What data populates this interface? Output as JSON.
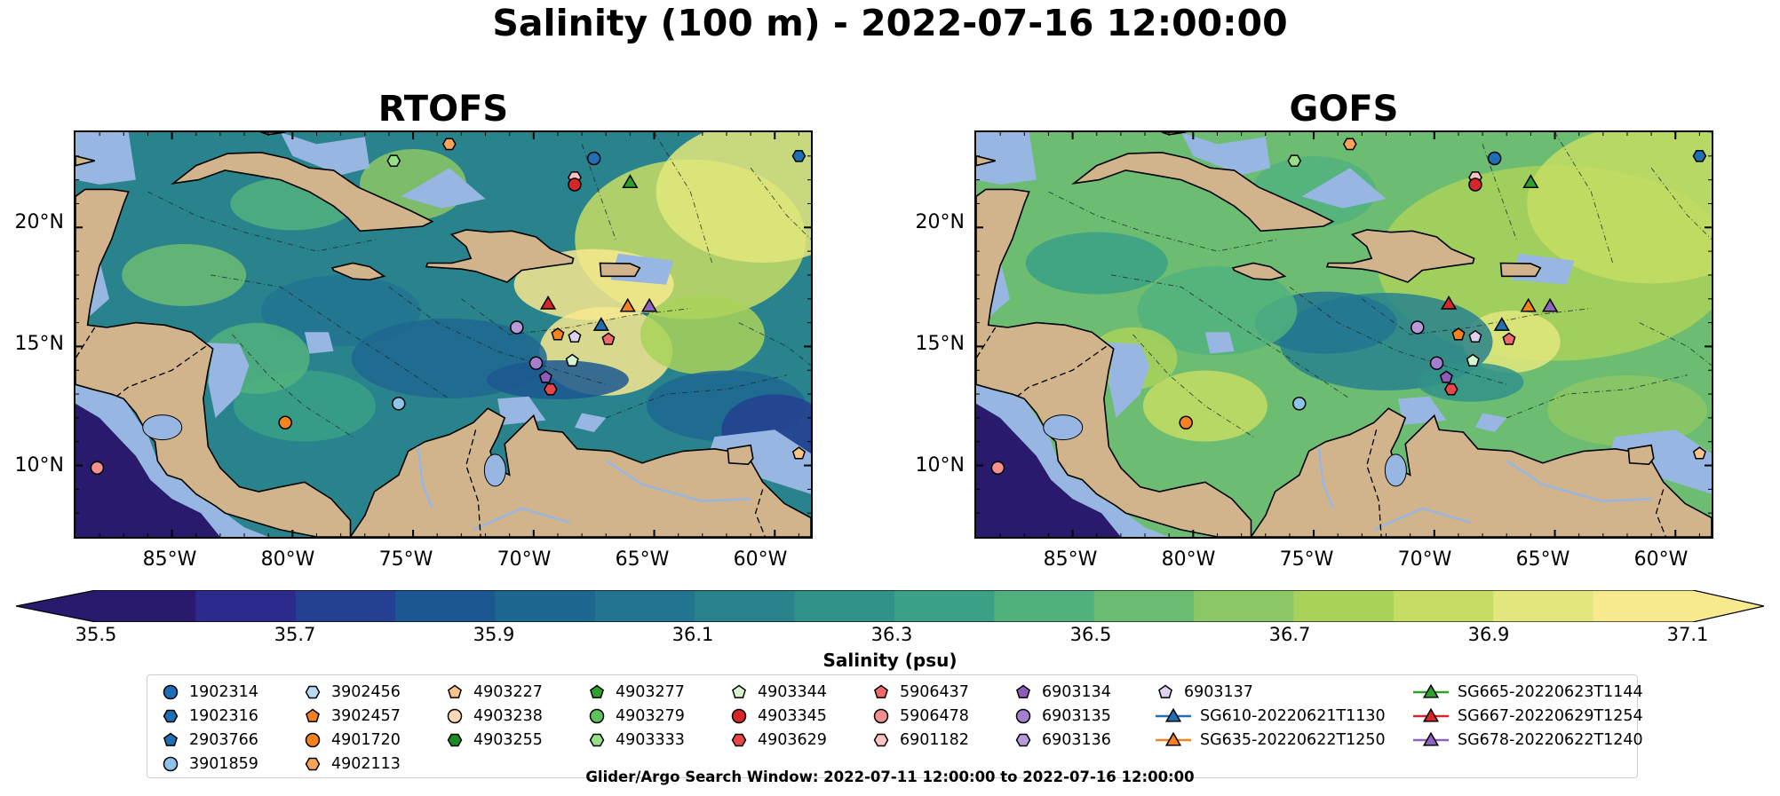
{
  "title": "Salinity (100 m) - 2022-07-16 12:00:00",
  "panels": [
    {
      "title": "RTOFS",
      "palette": "rtofs"
    },
    {
      "title": "GOFS",
      "palette": "gofs"
    }
  ],
  "y_ticks": [
    "20°N",
    "15°N",
    "10°N"
  ],
  "x_ticks": [
    "85°W",
    "80°W",
    "75°W",
    "70°W",
    "65°W",
    "60°W"
  ],
  "colorbar": {
    "label": "Salinity (psu)",
    "min": 35.5,
    "max": 37.1,
    "step": 0.1,
    "tick_labels": [
      "35.5",
      "35.7",
      "35.9",
      "36.1",
      "36.3",
      "36.5",
      "36.7",
      "36.9",
      "37.1"
    ],
    "colors": [
      "#2a1a6e",
      "#2d2a8e",
      "#253f92",
      "#1c5791",
      "#1e6791",
      "#227490",
      "#29838d",
      "#31928a",
      "#3aa186",
      "#51b17e",
      "#6cbc72",
      "#8cc765",
      "#a9d25b",
      "#c6dd63",
      "#e3e77d",
      "#f7e98e"
    ]
  },
  "colors": {
    "land": "#d2b48c",
    "shelf": "#98b6e2",
    "deep_pacific": "#2a1a6e"
  },
  "legend": {
    "items": [
      {
        "label": "1902314",
        "marker": "circle",
        "color": "#1f6fb4"
      },
      {
        "label": "1902316",
        "marker": "hexagon",
        "color": "#1f6fb4"
      },
      {
        "label": "2903766",
        "marker": "pentagon",
        "color": "#1f6fb4"
      },
      {
        "label": "3901859",
        "marker": "circle",
        "color": "#8ec3ea"
      },
      {
        "label": "3902456",
        "marker": "hexagon",
        "color": "#b9dcf4"
      },
      {
        "label": "3902457",
        "marker": "pentagon",
        "color": "#f5821f"
      },
      {
        "label": "4901720",
        "marker": "circle",
        "color": "#f5821f"
      },
      {
        "label": "4902113",
        "marker": "hexagon",
        "color": "#f9a25a"
      },
      {
        "label": "4903227",
        "marker": "pentagon",
        "color": "#fcc38a"
      },
      {
        "label": "4903238",
        "marker": "circle",
        "color": "#fcd9b5"
      },
      {
        "label": "4903255",
        "marker": "hexagon",
        "color": "#1d8a23"
      },
      {
        "label": "4903277",
        "marker": "pentagon",
        "color": "#2ea02c"
      },
      {
        "label": "4903279",
        "marker": "circle",
        "color": "#5cc45a"
      },
      {
        "label": "4903333",
        "marker": "hexagon",
        "color": "#98df8a"
      },
      {
        "label": "4903344",
        "marker": "pentagon",
        "color": "#d6f5cf"
      },
      {
        "label": "4903345",
        "marker": "circle",
        "color": "#d62728"
      },
      {
        "label": "4903629",
        "marker": "hexagon",
        "color": "#e8474a"
      },
      {
        "label": "5906437",
        "marker": "pentagon",
        "color": "#f06a6b"
      },
      {
        "label": "5906478",
        "marker": "circle",
        "color": "#f4908f"
      },
      {
        "label": "6901182",
        "marker": "hexagon",
        "color": "#fdc3c3"
      },
      {
        "label": "6903134",
        "marker": "pentagon",
        "color": "#8c5cb8"
      },
      {
        "label": "6903135",
        "marker": "circle",
        "color": "#a47fcf"
      },
      {
        "label": "6903136",
        "marker": "hexagon",
        "color": "#b89ad9"
      },
      {
        "label": "6903137",
        "marker": "pentagon",
        "color": "#e0d1f0"
      },
      {
        "label": "SG610-20220621T1130",
        "marker": "line-triangle",
        "color": "#1f6fb4"
      },
      {
        "label": "SG635-20220622T1250",
        "marker": "line-triangle",
        "color": "#f5821f"
      },
      {
        "label": "SG665-20220623T1144",
        "marker": "line-triangle",
        "color": "#2ea02c"
      },
      {
        "label": "SG667-20220629T1254",
        "marker": "line-triangle",
        "color": "#d62728"
      },
      {
        "label": "SG678-20220622T1240",
        "marker": "line-triangle",
        "color": "#8c64c0"
      }
    ]
  },
  "search_window": "Glider/Argo Search Window: 2022-07-11 12:00:00 to 2022-07-16 12:00:00"
}
